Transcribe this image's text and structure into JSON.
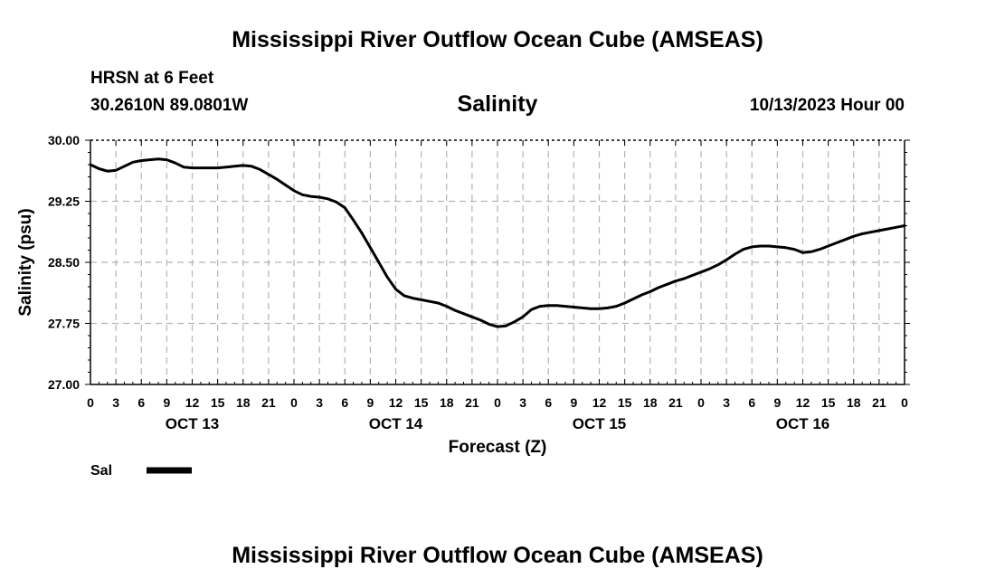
{
  "header": {
    "top_title": "Mississippi River Outflow Ocean Cube (AMSEAS)",
    "station": "HRSN at 6 Feet",
    "coordinates": "30.2610N  89.0801W",
    "run_time": "10/13/2023 Hour 00",
    "bottom_title": "Mississippi River Outflow Ocean Cube (AMSEAS)"
  },
  "chart_data": {
    "type": "line",
    "title": "Salinity",
    "xlabel": "Forecast (Z)",
    "ylabel": "Salinity (psu)",
    "ylim": [
      27.0,
      30.0
    ],
    "yticks": [
      "30.00",
      "29.25",
      "28.50",
      "27.75",
      "27.00"
    ],
    "ytick_values": [
      30.0,
      29.25,
      28.5,
      27.75,
      27.0
    ],
    "xlim": [
      0,
      96
    ],
    "xtick_labels": [
      "0",
      "3",
      "6",
      "9",
      "12",
      "15",
      "18",
      "21",
      "0",
      "3",
      "6",
      "9",
      "12",
      "15",
      "18",
      "21",
      "0",
      "3",
      "6",
      "9",
      "12",
      "15",
      "18",
      "21",
      "0",
      "3",
      "6",
      "9",
      "12",
      "15",
      "18",
      "21",
      "0"
    ],
    "day_labels": [
      {
        "label": "OCT 13",
        "hour": 12
      },
      {
        "label": "OCT 14",
        "hour": 36
      },
      {
        "label": "OCT 15",
        "hour": 60
      },
      {
        "label": "OCT 16",
        "hour": 84
      }
    ],
    "grid": true,
    "legend": {
      "position": "bottom-left",
      "entries": [
        "Sal"
      ]
    },
    "series": [
      {
        "name": "Sal",
        "x": [
          0,
          1,
          2,
          3,
          4,
          5,
          6,
          7,
          8,
          9,
          10,
          11,
          12,
          13,
          14,
          15,
          16,
          17,
          18,
          19,
          20,
          21,
          22,
          23,
          24,
          25,
          26,
          27,
          28,
          29,
          30,
          31,
          32,
          33,
          34,
          35,
          36,
          37,
          38,
          39,
          40,
          41,
          42,
          43,
          44,
          45,
          46,
          47,
          48,
          49,
          50,
          51,
          52,
          53,
          54,
          55,
          56,
          57,
          58,
          59,
          60,
          61,
          62,
          63,
          64,
          65,
          66,
          67,
          68,
          69,
          70,
          71,
          72,
          73,
          74,
          75,
          76,
          77,
          78,
          79,
          80,
          81,
          82,
          83,
          84,
          85,
          86,
          87,
          88,
          89,
          90,
          91,
          92,
          93,
          94,
          95,
          96
        ],
        "values": [
          29.7,
          29.65,
          29.62,
          29.63,
          29.68,
          29.73,
          29.75,
          29.76,
          29.77,
          29.76,
          29.72,
          29.67,
          29.66,
          29.66,
          29.66,
          29.66,
          29.67,
          29.68,
          29.69,
          29.68,
          29.64,
          29.58,
          29.52,
          29.45,
          29.38,
          29.33,
          29.31,
          29.3,
          29.28,
          29.24,
          29.17,
          29.02,
          28.86,
          28.68,
          28.5,
          28.32,
          28.17,
          28.09,
          28.06,
          28.04,
          28.02,
          28.0,
          27.96,
          27.91,
          27.87,
          27.83,
          27.79,
          27.74,
          27.71,
          27.72,
          27.77,
          27.83,
          27.92,
          27.96,
          27.97,
          27.97,
          27.96,
          27.95,
          27.94,
          27.93,
          27.93,
          27.94,
          27.96,
          28.0,
          28.05,
          28.1,
          28.14,
          28.19,
          28.23,
          28.27,
          28.3,
          28.34,
          28.38,
          28.42,
          28.47,
          28.53,
          28.6,
          28.66,
          28.69,
          28.7,
          28.7,
          28.69,
          28.68,
          28.66,
          28.62,
          28.63,
          28.66,
          28.7,
          28.74,
          28.78,
          28.82,
          28.85,
          28.87,
          28.89,
          28.91,
          28.93,
          28.95
        ]
      }
    ]
  }
}
